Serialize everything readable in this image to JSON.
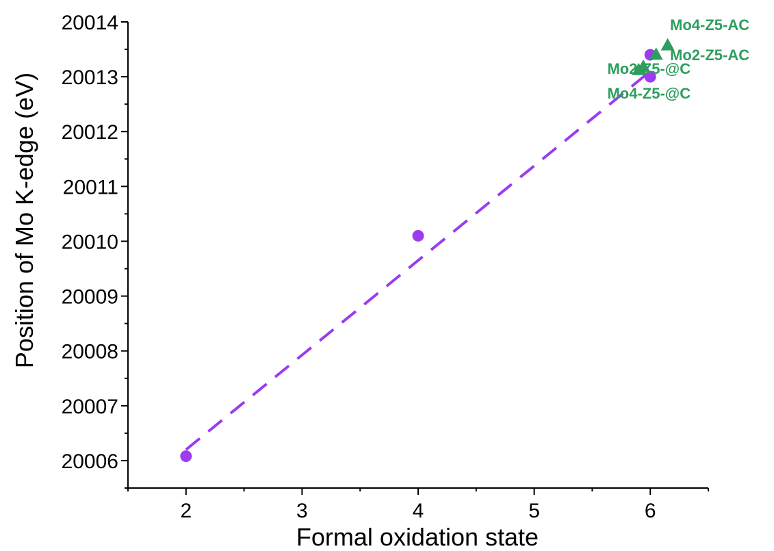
{
  "chart_data": {
    "type": "scatter",
    "xlabel": "Formal oxidation state",
    "ylabel": "Position of Mo K-edge (eV)",
    "xlim": [
      1.5,
      6.5
    ],
    "ylim": [
      20005.5,
      20014
    ],
    "xticks": [
      2,
      3,
      4,
      5,
      6
    ],
    "yticks": [
      20006,
      20007,
      20008,
      20009,
      20010,
      20011,
      20012,
      20013,
      20014
    ],
    "grid": false,
    "series": [
      {
        "marker": "circle",
        "color": "#9b3cf0",
        "points": [
          {
            "x": 2,
            "y": 20006.08
          },
          {
            "x": 4,
            "y": 20010.1
          },
          {
            "x": 6,
            "y": 20013.4
          },
          {
            "x": 6,
            "y": 20013.0
          }
        ]
      },
      {
        "marker": "triangle",
        "color": "#2e9e5e",
        "points": [
          {
            "x": 5.9,
            "y": 20013.12,
            "label": "Mo4-Z5-@C"
          },
          {
            "x": 5.94,
            "y": 20013.18,
            "label": "Mo2-Z5-@C"
          },
          {
            "x": 6.05,
            "y": 20013.4,
            "label": "Mo2-Z5-AC"
          },
          {
            "x": 6.15,
            "y": 20013.57,
            "label": "Mo4-Z5-AC"
          }
        ]
      }
    ],
    "fit_line": {
      "style": "dashed",
      "color": "#9b3cf0",
      "x": [
        2,
        6
      ],
      "y": [
        20006.2,
        20013.1
      ]
    },
    "annotations": [
      {
        "text": "Mo4-Z5-AC",
        "x": 6.17,
        "y": 20013.85
      },
      {
        "text": "Mo2-Z5-AC",
        "x": 6.17,
        "y": 20013.3
      },
      {
        "text": "Mo2-Z5-@C",
        "x": 5.63,
        "y": 20013.05
      },
      {
        "text": "Mo4-Z5-@C",
        "x": 5.63,
        "y": 20012.6
      }
    ],
    "annotation_color": "#2e9e5e"
  }
}
